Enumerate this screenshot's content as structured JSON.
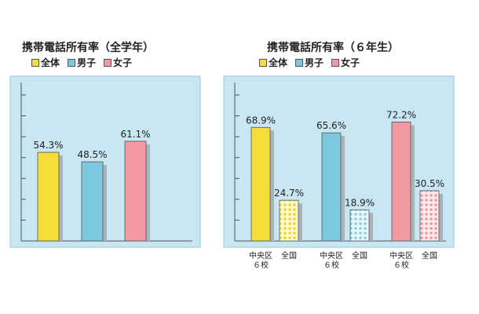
{
  "colors": {
    "all": "#f5dd3a",
    "boys": "#7cc8dc",
    "girls": "#f29aa4",
    "plot_bg": "#c9e6f3",
    "shadow": "#a9b3ba"
  },
  "legend": [
    {
      "key": "all",
      "label": "全体"
    },
    {
      "key": "boys",
      "label": "男子"
    },
    {
      "key": "girls",
      "label": "女子"
    }
  ],
  "chart_data": [
    {
      "type": "bar",
      "title": "携帯電話所有率（全学年）",
      "categories": [
        "全体",
        "男子",
        "女子"
      ],
      "values": [
        54.3,
        48.5,
        61.1
      ],
      "labels": [
        "54.3%",
        "48.5%",
        "61.1%"
      ],
      "ylim": [
        0,
        100
      ],
      "grid": false,
      "legend_position": "top"
    },
    {
      "type": "bar",
      "title": "携帯電話所有率（６年生）",
      "groups": [
        "全体",
        "男子",
        "女子"
      ],
      "sub_categories": [
        "中央区\n６校",
        "全国"
      ],
      "sub_labels": [
        [
          "中央区",
          "６校"
        ],
        [
          "全国"
        ]
      ],
      "series": [
        {
          "name": "中央区６校",
          "values": [
            68.9,
            65.6,
            72.2
          ],
          "labels": [
            "68.9%",
            "65.6%",
            "72.2%"
          ]
        },
        {
          "name": "全国",
          "values": [
            24.7,
            18.9,
            30.5
          ],
          "labels": [
            "24.7%",
            "18.9%",
            "30.5%"
          ]
        }
      ],
      "ylim": [
        0,
        100
      ],
      "grid": false,
      "legend_position": "top"
    }
  ]
}
